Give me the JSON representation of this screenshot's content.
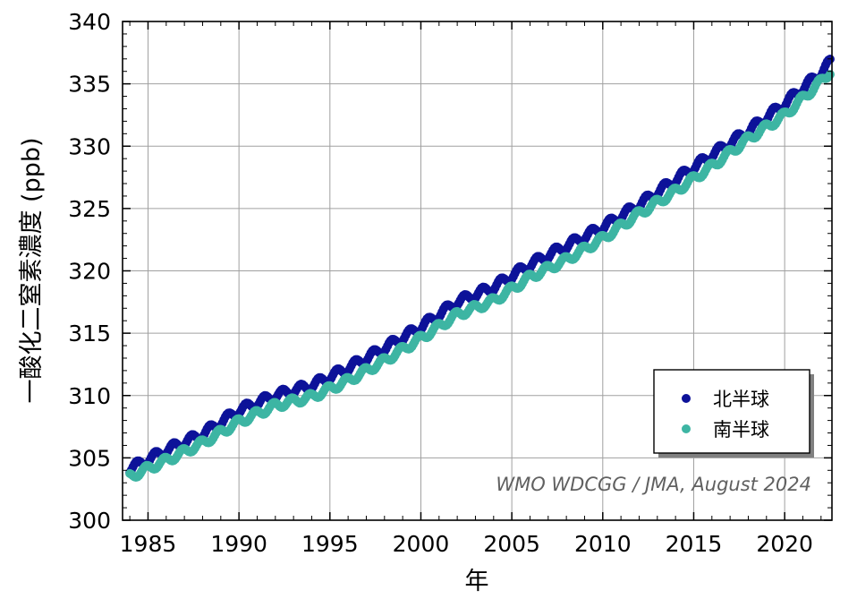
{
  "chart_data": {
    "type": "scatter",
    "title": "",
    "xlabel": "年",
    "ylabel": "一酸化二窒素濃度 (ppb)",
    "xlim": [
      1983.6,
      2022.6
    ],
    "ylim": [
      300,
      340
    ],
    "x_ticks": [
      1985,
      1990,
      1995,
      2000,
      2005,
      2010,
      2015,
      2020
    ],
    "y_ticks": [
      300,
      305,
      310,
      315,
      320,
      325,
      330,
      335,
      340
    ],
    "grid": true,
    "legend_position": "bottom-right",
    "annotation": "WMO WDCGG / JMA, August 2024",
    "anchor_years": [
      1984,
      1986,
      1988,
      1990,
      1992,
      1994,
      1996,
      1998,
      2000,
      2002,
      2004,
      2006,
      2008,
      2010,
      2012,
      2014,
      2016,
      2018,
      2020,
      2022,
      2022.5
    ],
    "series": [
      {
        "name": "北半球",
        "color": "#0d1299",
        "trend": [
          304.1,
          305.6,
          306.9,
          308.8,
          310.0,
          310.8,
          312.2,
          313.8,
          315.5,
          317.5,
          318.7,
          320.5,
          322.0,
          323.5,
          325.3,
          327.3,
          329.3,
          331.2,
          333.4,
          335.9,
          336.7
        ],
        "seasonal_amplitude": 0.35
      },
      {
        "name": "南半球",
        "color": "#3db5a3",
        "trend": [
          303.5,
          304.8,
          306.2,
          307.9,
          309.2,
          309.9,
          311.2,
          312.8,
          314.6,
          316.5,
          317.6,
          319.5,
          320.9,
          322.6,
          324.6,
          326.4,
          328.4,
          330.6,
          332.5,
          335.2,
          336.0
        ],
        "seasonal_amplitude": 0.3
      }
    ]
  }
}
